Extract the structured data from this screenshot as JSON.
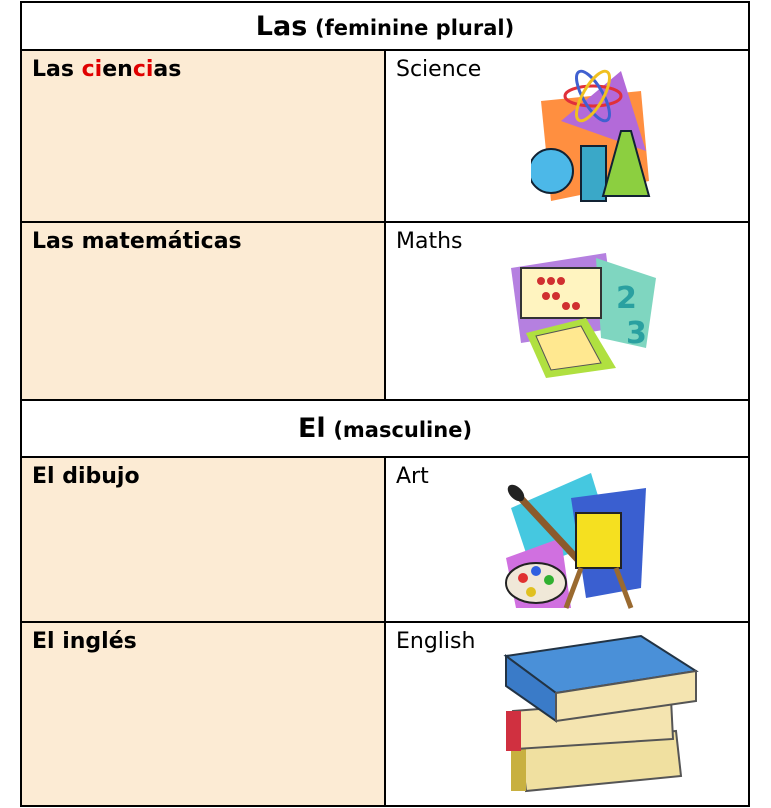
{
  "sections": [
    {
      "article": "Las",
      "note": "(feminine plural)",
      "rows": [
        {
          "spanish": [
            {
              "text": "Las "
            },
            {
              "text": "ci",
              "color": "#e00000"
            },
            {
              "text": "en"
            },
            {
              "text": "ci",
              "color": "#e00000"
            },
            {
              "text": "as"
            }
          ],
          "english": "Science"
        },
        {
          "spanish": [
            {
              "text": "Las matemáticas"
            }
          ],
          "english": "Maths"
        }
      ]
    },
    {
      "article": "El",
      "note": "(masculine)",
      "rows": [
        {
          "spanish": [
            {
              "text": "El dibujo"
            }
          ],
          "english": "Art"
        },
        {
          "spanish": [
            {
              "text": "El inglés"
            }
          ],
          "english": "English"
        }
      ]
    }
  ]
}
